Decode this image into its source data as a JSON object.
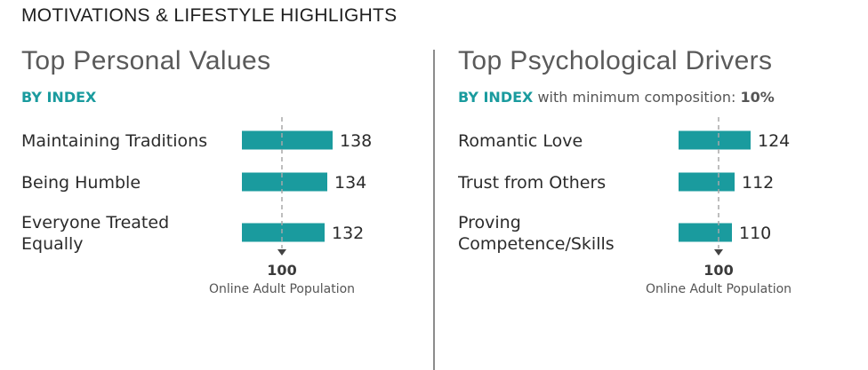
{
  "header": {
    "title": "MOTIVATIONS & LIFESTYLE HIGHLIGHTS"
  },
  "colors": {
    "bar": "#1a9b9e",
    "accent": "#1a9b9e",
    "reference_line": "#a8a8a8",
    "marker": "#444444"
  },
  "chart_data": [
    {
      "type": "bar",
      "orientation": "horizontal",
      "title": "Top Personal Values",
      "subtitle_emphasis": "BY INDEX",
      "subtitle_rest": "",
      "subtitle_value": "",
      "categories": [
        [
          "Maintaining Traditions"
        ],
        [
          "Being Humble"
        ],
        [
          "Everyone Treated",
          "Equally"
        ]
      ],
      "values": [
        138,
        134,
        132
      ],
      "reference": {
        "value": 100,
        "label": "100",
        "caption": "Online Adult Population"
      },
      "xlim": [
        70,
        140
      ],
      "grid": false
    },
    {
      "type": "bar",
      "orientation": "horizontal",
      "title": "Top Psychological Drivers",
      "subtitle_emphasis": "BY INDEX",
      "subtitle_rest": " with minimum composition: ",
      "subtitle_value": "10%",
      "categories": [
        [
          "Romantic Love"
        ],
        [
          "Trust from Others"
        ],
        [
          "Proving",
          "Competence/Skills"
        ]
      ],
      "values": [
        124,
        112,
        110
      ],
      "reference": {
        "value": 100,
        "label": "100",
        "caption": "Online Adult Population"
      },
      "xlim": [
        70,
        140
      ],
      "grid": false
    }
  ]
}
